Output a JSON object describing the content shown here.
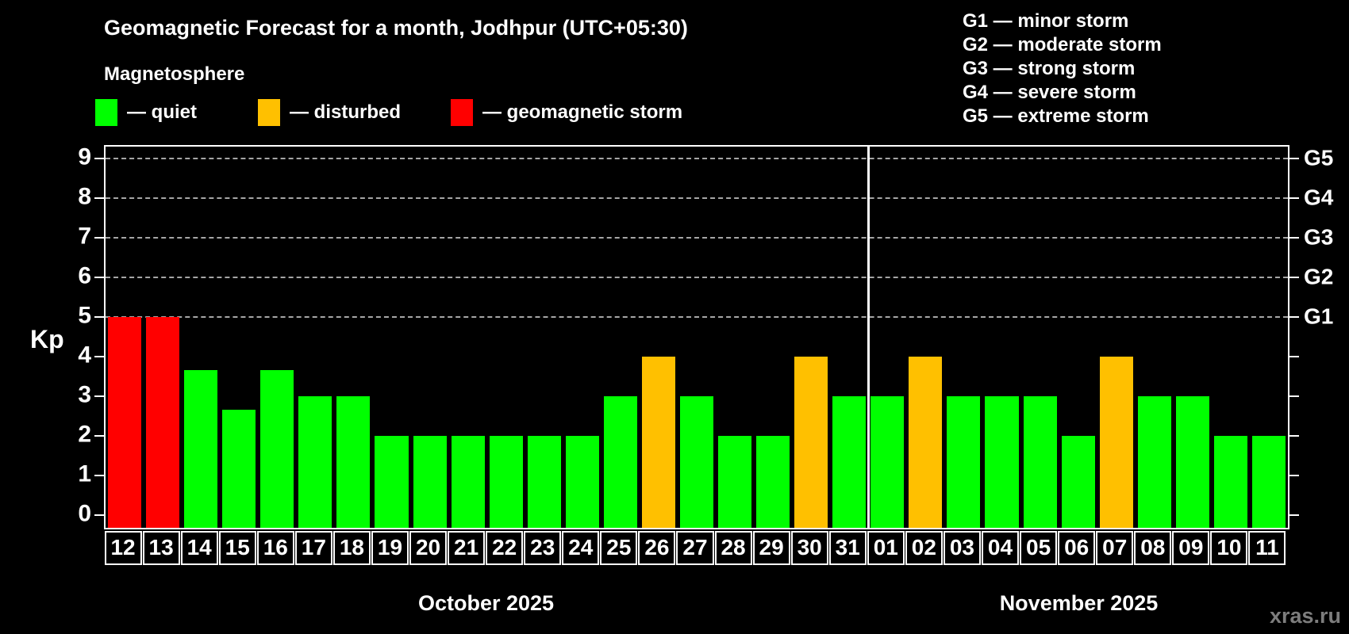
{
  "header": {
    "title": "Geomagnetic Forecast for a month, Jodhpur (UTC+05:30)",
    "subtitle": "Magnetosphere"
  },
  "legend": {
    "items": [
      {
        "status": "quiet",
        "color": "#00ff00",
        "label": "— quiet"
      },
      {
        "status": "disturbed",
        "color": "#ffc000",
        "label": "— disturbed"
      },
      {
        "status": "storm",
        "color": "#ff0000",
        "label": "— geomagnetic storm"
      }
    ]
  },
  "g_legend": [
    {
      "label": "G1 — minor storm"
    },
    {
      "label": "G2 — moderate storm"
    },
    {
      "label": "G3 — strong storm"
    },
    {
      "label": "G4 — severe storm"
    },
    {
      "label": "G5 — extreme storm"
    }
  ],
  "chart_data": {
    "type": "bar",
    "title": "Geomagnetic Forecast for a month, Jodhpur (UTC+05:30)",
    "xlabel": "",
    "ylabel": "Kp",
    "ylim": [
      -0.3,
      9.4
    ],
    "yticks": [
      0,
      1,
      2,
      3,
      4,
      5,
      6,
      7,
      8,
      9
    ],
    "gridlines": {
      "values": [
        5,
        6,
        7,
        8,
        9
      ],
      "style": "dashed",
      "color": "#a6a6a6"
    },
    "right_axis_labels": [
      {
        "label": "G1",
        "kp": 5
      },
      {
        "label": "G2",
        "kp": 6
      },
      {
        "label": "G3",
        "kp": 7
      },
      {
        "label": "G4",
        "kp": 8
      },
      {
        "label": "G5",
        "kp": 9
      }
    ],
    "status_colors": {
      "quiet": "#00ff00",
      "disturbed": "#ffc000",
      "storm": "#ff0000"
    },
    "months": [
      {
        "label": "October 2025",
        "days": [
          "12",
          "13",
          "14",
          "15",
          "16",
          "17",
          "18",
          "19",
          "20",
          "21",
          "22",
          "23",
          "24",
          "25",
          "26",
          "27",
          "28",
          "29",
          "30",
          "31"
        ],
        "values": [
          5,
          5,
          3.67,
          2.67,
          3.67,
          3,
          3,
          2,
          2,
          2,
          2,
          2,
          2,
          3,
          4,
          3,
          2,
          2,
          4,
          3
        ],
        "statuses": [
          "storm",
          "storm",
          "quiet",
          "quiet",
          "quiet",
          "quiet",
          "quiet",
          "quiet",
          "quiet",
          "quiet",
          "quiet",
          "quiet",
          "quiet",
          "quiet",
          "disturbed",
          "quiet",
          "quiet",
          "quiet",
          "disturbed",
          "quiet"
        ]
      },
      {
        "label": "November 2025",
        "days": [
          "01",
          "02",
          "03",
          "04",
          "05",
          "06",
          "07",
          "08",
          "09",
          "10",
          "11"
        ],
        "values": [
          3,
          4,
          3,
          3,
          3,
          2,
          4,
          3,
          3,
          2,
          2
        ],
        "statuses": [
          "quiet",
          "disturbed",
          "quiet",
          "quiet",
          "quiet",
          "quiet",
          "disturbed",
          "quiet",
          "quiet",
          "quiet",
          "quiet"
        ]
      }
    ]
  },
  "watermark": "xras.ru"
}
